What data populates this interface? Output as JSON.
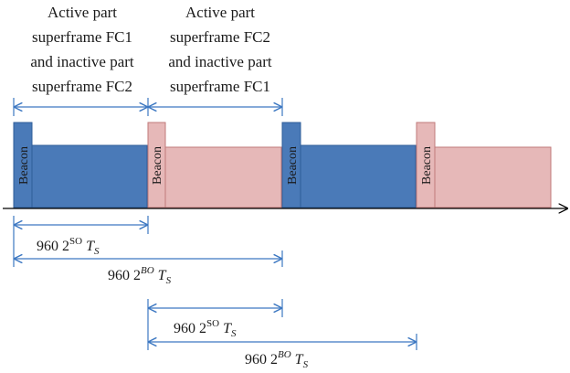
{
  "colors": {
    "fc1": "#4a7ab8",
    "fc1_stroke": "#2f5e99",
    "fc2": "#e6b8b8",
    "fc2_stroke": "#c07a7a",
    "arrow": "#3d78c2"
  },
  "header_labels": [
    {
      "lines": [
        "Active part",
        "superframe FC1",
        "and inactive part",
        "superframe FC2"
      ]
    },
    {
      "lines": [
        "Active part",
        "superframe FC2",
        "and inactive part",
        "superframe FC1"
      ]
    }
  ],
  "beacon_label": "Beacon",
  "dimensions": [
    {
      "prefix": "960 2",
      "sup": "SO",
      "var": "T",
      "sub": "S"
    },
    {
      "prefix": "960 2",
      "sup": "BO",
      "var": "T",
      "sub": "S"
    },
    {
      "prefix": "960 2",
      "sup": "SO",
      "var": "T",
      "sub": "S"
    },
    {
      "prefix": "960 2",
      "sup": "BO",
      "var": "T",
      "sub": "S"
    }
  ]
}
